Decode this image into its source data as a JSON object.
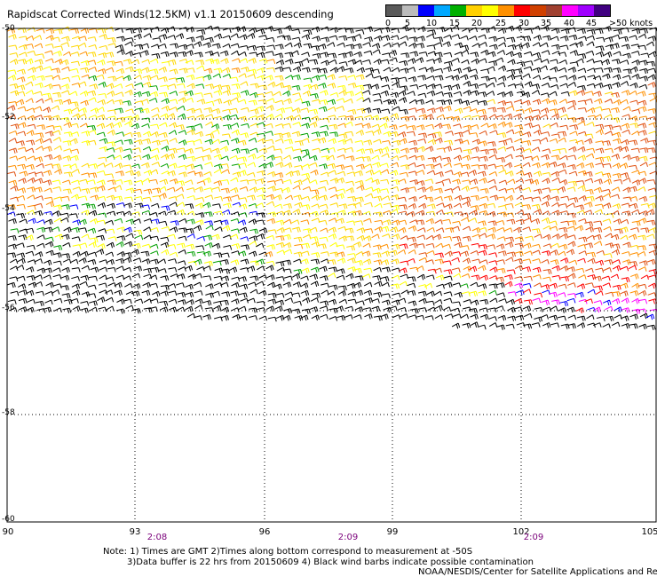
{
  "title": "Rapidscat Corrected Winds(12.5KM) v1.1 20150609 descending",
  "legend": {
    "colors": [
      "#2b2b2b",
      "#8c8c8c",
      "#c8c8c8",
      "#0000ff",
      "#1e90ff",
      "#00b8ff",
      "#00a000",
      "#30d030",
      "#ffd700",
      "#ffff00",
      "#ff9000",
      "#ffb000",
      "#ff0000",
      "#ff4040",
      "#a02828",
      "#c06040",
      "#ff00ff",
      "#ff66ff",
      "#8000ff",
      "#400080"
    ],
    "labels": [
      "0",
      "5",
      "10",
      "15",
      "20",
      "25",
      "30",
      "35",
      "40",
      "45",
      ">50 knots"
    ]
  },
  "map": {
    "lon_labels": [
      "90",
      "93",
      "96",
      "99",
      "102",
      "105"
    ],
    "lat_labels": [
      "-50",
      "-52",
      "-54",
      "-56",
      "-58",
      "-60"
    ],
    "time_labels": [
      "2:08",
      "2:09",
      "2:09"
    ],
    "barb_colors": {
      "contaminated": "#000000",
      "15-20": "#00a000",
      "20-25": "#ffff00",
      "25-30": "#ffd700",
      "30-35": "#ff9000",
      "35-40": "#e05010",
      "40-45": "#ff0000",
      "45-50": "#ff00ff",
      "10-15": "#0000ff"
    }
  },
  "notes": {
    "line1": "Note: 1) Times are GMT 2)Times along bottom correspond to measurement at -50S",
    "line2": "3)Data buffer is 22 hrs from 20150609 4) Black wind barbs indicate possible contamination",
    "credit": "NOAA/NESDIS/Center for Satellite Applications and Resea"
  }
}
